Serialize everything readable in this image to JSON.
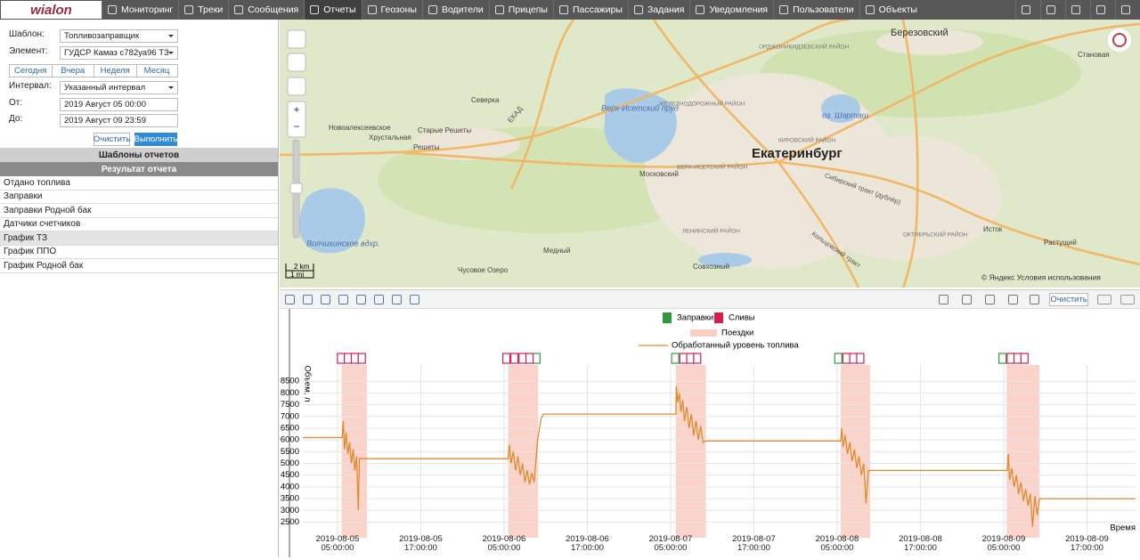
{
  "nav": {
    "logo": "wialon",
    "menu": [
      "Мониторинг",
      "Треки",
      "Сообщения",
      "Отчеты",
      "Геозоны",
      "Водители",
      "Прицепы",
      "Пассажиры",
      "Задания",
      "Уведомления",
      "Пользователи",
      "Объекты"
    ]
  },
  "report_form": {
    "template": {
      "label": "Шаблон:",
      "value": "Топливозаправщик"
    },
    "element": {
      "label": "Элемент:",
      "value": "ГУДСР Камаз с782уа96 ТЗ"
    },
    "quick_ranges": [
      "Сегодня",
      "Вчера",
      "Неделя",
      "Месяц"
    ],
    "interval": {
      "label": "Интервал:",
      "value": "Указанный интервал"
    },
    "from": {
      "label": "От:",
      "value": "2019 Август 05 00:00"
    },
    "to": {
      "label": "До:",
      "value": "2019 Август 09 23:59"
    },
    "buttons": [
      "Очистить",
      "Выполнить"
    ]
  },
  "sections": {
    "templates": "Шаблоны отчетов",
    "result": "Результат отчета"
  },
  "result_items": [
    "Отдано топлива",
    "Заправки",
    "Заправки Родной бак",
    "Датчики счетчиков",
    "График ТЗ",
    "График ППО",
    "График Родной бак"
  ],
  "map": {
    "labels": [
      "Березовский",
      "Екатеринбург",
      "Верх-Исетский пруд",
      "оз. Шарташ",
      "Волчихинское вдхр.",
      "Северка",
      "Новоалексеевское",
      "Хрустальная",
      "Старые Решеты",
      "Решеты",
      "Московский",
      "Медный",
      "Совхозный",
      "Чусовое Озеро",
      "Исток",
      "Растущий",
      "Становая",
      "ЕКАД",
      "Орджоникидзевский район",
      "Железнодорожный район",
      "Кировский район",
      "Верх-Исетский район",
      "Ленинский район",
      "Октябрьский район",
      "Сибирский тракт (дублёр)",
      "Кольцовский тракт"
    ],
    "scale": [
      "2 km",
      "1 mi"
    ],
    "attribution": "© Яндекс Условия использования"
  },
  "chart_toolbar": {
    "clear": "Очистить"
  },
  "chart_data": {
    "type": "line",
    "y_label": "Объем, л",
    "x_label": "Время",
    "grid": true,
    "xlim": [
      "2019-08-05 00:00",
      "2019-08-10 00:00"
    ],
    "xticks": [
      "2019-08-05 05:00:00",
      "2019-08-05 17:00:00",
      "2019-08-06 05:00:00",
      "2019-08-06 17:00:00",
      "2019-08-07 05:00:00",
      "2019-08-07 17:00:00",
      "2019-08-08 05:00:00",
      "2019-08-08 17:00:00",
      "2019-08-09 05:00:00",
      "2019-08-09 17:00:00"
    ],
    "ylim": [
      2100,
      9000
    ],
    "yticks": [
      2500,
      3000,
      3500,
      4000,
      4500,
      5000,
      5500,
      6000,
      6500,
      7000,
      7500,
      8000,
      8500
    ],
    "refuels": {
      "name": "Заправки",
      "color": "#2e9b3a",
      "x": [
        "2019-08-06 09:40",
        "2019-08-07 05:40",
        "2019-08-08 05:10",
        "2019-08-09 04:50"
      ]
    },
    "drains": {
      "name": "Сливы",
      "color": "#d81b4f",
      "x": [
        "2019-08-05 05:30",
        "2019-08-05 06:30",
        "2019-08-05 07:30",
        "2019-08-05 08:30",
        "2019-08-06 05:20",
        "2019-08-06 06:30",
        "2019-08-06 07:40",
        "2019-08-06 08:40",
        "2019-08-07 06:50",
        "2019-08-07 07:50",
        "2019-08-07 08:50",
        "2019-08-08 06:20",
        "2019-08-08 07:20",
        "2019-08-08 08:20",
        "2019-08-09 06:00",
        "2019-08-09 07:00",
        "2019-08-09 08:00"
      ]
    },
    "trips": {
      "name": "Поездки",
      "color": "#f9cfc4",
      "intervals": [
        [
          "2019-08-05 05:35",
          "2019-08-05 09:15"
        ],
        [
          "2019-08-06 05:35",
          "2019-08-06 09:55"
        ],
        [
          "2019-08-07 05:45",
          "2019-08-07 10:05"
        ],
        [
          "2019-08-08 05:30",
          "2019-08-08 09:45"
        ],
        [
          "2019-08-09 05:25",
          "2019-08-09 10:10"
        ]
      ]
    },
    "series": [
      {
        "name": "Обработанный уровень топлива",
        "color": "#e08a2e",
        "x": [
          "2019-08-05 00:00",
          "2019-08-05 05:40",
          "2019-08-05 05:50",
          "2019-08-05 06:00",
          "2019-08-05 06:15",
          "2019-08-05 06:30",
          "2019-08-05 06:45",
          "2019-08-05 07:00",
          "2019-08-05 07:15",
          "2019-08-05 07:30",
          "2019-08-05 07:45",
          "2019-08-05 08:00",
          "2019-08-05 08:10",
          "2019-08-06 05:35",
          "2019-08-06 05:45",
          "2019-08-06 06:00",
          "2019-08-06 06:20",
          "2019-08-06 06:40",
          "2019-08-06 07:00",
          "2019-08-06 07:20",
          "2019-08-06 07:40",
          "2019-08-06 08:00",
          "2019-08-06 08:20",
          "2019-08-06 08:40",
          "2019-08-06 09:00",
          "2019-08-06 09:20",
          "2019-08-06 09:50",
          "2019-08-06 10:20",
          "2019-08-06 10:40",
          "2019-08-07 05:45",
          "2019-08-07 05:50",
          "2019-08-07 06:00",
          "2019-08-07 06:15",
          "2019-08-07 06:30",
          "2019-08-07 06:45",
          "2019-08-07 07:00",
          "2019-08-07 07:20",
          "2019-08-07 07:40",
          "2019-08-07 08:00",
          "2019-08-07 08:20",
          "2019-08-07 08:40",
          "2019-08-07 09:00",
          "2019-08-07 09:20",
          "2019-08-07 09:40",
          "2019-08-07 10:00",
          "2019-08-08 05:30",
          "2019-08-08 05:40",
          "2019-08-08 05:50",
          "2019-08-08 06:10",
          "2019-08-08 06:30",
          "2019-08-08 06:50",
          "2019-08-08 07:10",
          "2019-08-08 07:30",
          "2019-08-08 07:50",
          "2019-08-08 08:10",
          "2019-08-08 08:30",
          "2019-08-08 08:50",
          "2019-08-08 09:10",
          "2019-08-08 09:30",
          "2019-08-09 05:30",
          "2019-08-09 05:40",
          "2019-08-09 05:50",
          "2019-08-09 06:10",
          "2019-08-09 06:30",
          "2019-08-09 06:50",
          "2019-08-09 07:10",
          "2019-08-09 07:30",
          "2019-08-09 07:50",
          "2019-08-09 08:10",
          "2019-08-09 08:30",
          "2019-08-09 08:50",
          "2019-08-09 09:10",
          "2019-08-09 09:30",
          "2019-08-09 09:50",
          "2019-08-09 10:10",
          "2019-08-10 00:00"
        ],
        "values": [
          6100,
          6100,
          6800,
          5600,
          6300,
          5400,
          5900,
          5000,
          5600,
          4700,
          5300,
          3000,
          5200,
          5200,
          5800,
          5000,
          5500,
          4700,
          5300,
          4500,
          5000,
          4200,
          4700,
          4100,
          4600,
          4200,
          6000,
          6900,
          7100,
          7100,
          8300,
          7600,
          8000,
          7200,
          7700,
          6800,
          7400,
          6500,
          7100,
          6200,
          6800,
          6000,
          6600,
          5900,
          5950,
          5950,
          6500,
          5700,
          6200,
          5400,
          5900,
          5100,
          5600,
          4800,
          5300,
          4500,
          5000,
          3300,
          4700,
          4700,
          5400,
          4300,
          4800,
          4000,
          4500,
          3700,
          4200,
          3400,
          3900,
          3200,
          3700,
          2300,
          3600,
          2800,
          3500,
          3500
        ]
      }
    ]
  }
}
